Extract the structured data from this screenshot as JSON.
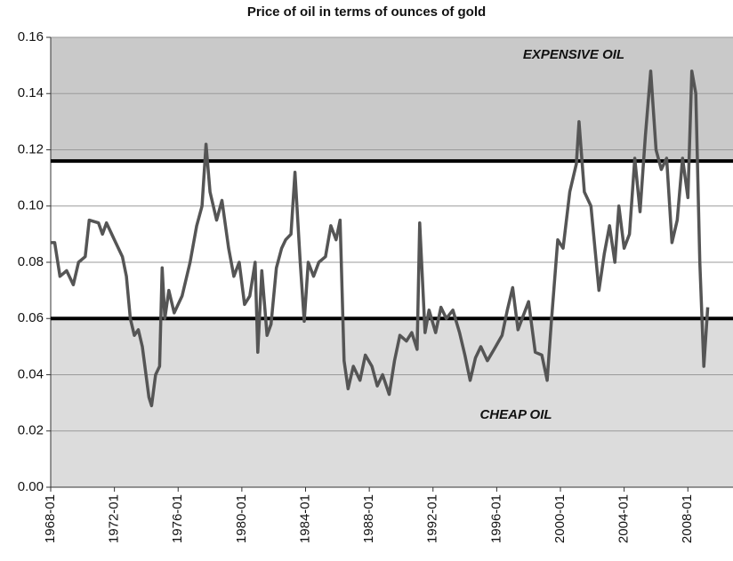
{
  "chart_data": {
    "type": "line",
    "title": "Price of oil in terms of ounces of gold",
    "annotations": [
      "EXPENSIVE OIL",
      "CHEAP OIL"
    ],
    "reference_lines": [
      0.116,
      0.06
    ],
    "band_colors": [
      "#c9c9c9",
      "#ffffff",
      "#dcdcdc"
    ],
    "color": "#555555",
    "grid": true,
    "ylim": [
      0,
      0.16
    ],
    "yticks": [
      {
        "value": 0,
        "label": "0.00"
      },
      0.02,
      0.04,
      0.06,
      0.08,
      {
        "value": 0.1,
        "label": "0.10"
      },
      0.12,
      0.14,
      0.16
    ],
    "xlim": [
      "1968-01",
      "2010-11"
    ],
    "xticks": [
      "1968-01",
      "1972-01",
      "1976-01",
      "1980-01",
      "1984-01",
      "1988-01",
      "1992-01",
      "1996-01",
      "2000-01",
      "2004-01",
      "2008-01"
    ],
    "x": [
      "1968-01",
      "1968-04",
      "1968-08",
      "1969-01",
      "1969-06",
      "1969-10",
      "1970-03",
      "1970-06",
      "1971-01",
      "1971-04",
      "1971-07",
      "1972-01",
      "1972-07",
      "1972-10",
      "1973-01",
      "1973-04",
      "1973-07",
      "1973-10",
      "1974-03",
      "1974-05",
      "1974-08",
      "1974-11",
      "1975-01",
      "1975-03",
      "1975-06",
      "1975-10",
      "1976-04",
      "1976-10",
      "1977-03",
      "1977-07",
      "1977-10",
      "1978-01",
      "1978-06",
      "1978-10",
      "1979-03",
      "1979-07",
      "1979-11",
      "1980-03",
      "1980-07",
      "1980-11",
      "1981-01",
      "1981-04",
      "1981-08",
      "1981-11",
      "1982-03",
      "1982-07",
      "1982-10",
      "1983-02",
      "1983-05",
      "1983-09",
      "1983-12",
      "1984-03",
      "1984-07",
      "1984-11",
      "1985-04",
      "1985-08",
      "1985-12",
      "1986-03",
      "1986-06",
      "1986-09",
      "1987-01",
      "1987-06",
      "1987-10",
      "1988-03",
      "1988-07",
      "1988-11",
      "1989-04",
      "1989-08",
      "1989-12",
      "1990-05",
      "1990-09",
      "1991-01",
      "1991-03",
      "1991-07",
      "1991-10",
      "1992-03",
      "1992-07",
      "1992-11",
      "1993-04",
      "1993-09",
      "1994-01",
      "1994-05",
      "1994-09",
      "1995-01",
      "1995-06",
      "1995-11",
      "1996-05",
      "1996-09",
      "1997-01",
      "1997-05",
      "1997-09",
      "1998-01",
      "1998-06",
      "1998-11",
      "1999-03",
      "1999-06",
      "1999-11",
      "2000-03",
      "2000-08",
      "2001-01",
      "2001-03",
      "2001-07",
      "2001-12",
      "2002-06",
      "2002-10",
      "2003-02",
      "2003-06",
      "2003-09",
      "2004-01",
      "2004-05",
      "2004-09",
      "2005-01",
      "2005-05",
      "2005-09",
      "2006-01",
      "2006-05",
      "2006-09",
      "2007-01",
      "2007-05",
      "2007-09",
      "2008-01",
      "2008-04",
      "2008-07",
      "2008-10",
      "2009-01",
      "2009-04"
    ],
    "values": [
      0.087,
      0.087,
      0.075,
      0.077,
      0.072,
      0.08,
      0.082,
      0.095,
      0.094,
      0.09,
      0.094,
      0.088,
      0.082,
      0.075,
      0.06,
      0.054,
      0.056,
      0.05,
      0.032,
      0.029,
      0.04,
      0.043,
      0.078,
      0.06,
      0.07,
      0.062,
      0.068,
      0.08,
      0.093,
      0.1,
      0.122,
      0.105,
      0.095,
      0.102,
      0.085,
      0.075,
      0.08,
      0.065,
      0.068,
      0.08,
      0.048,
      0.077,
      0.054,
      0.058,
      0.078,
      0.085,
      0.088,
      0.09,
      0.112,
      0.08,
      0.059,
      0.08,
      0.075,
      0.08,
      0.082,
      0.093,
      0.088,
      0.095,
      0.045,
      0.035,
      0.043,
      0.038,
      0.047,
      0.043,
      0.036,
      0.04,
      0.033,
      0.045,
      0.054,
      0.052,
      0.055,
      0.049,
      0.094,
      0.055,
      0.063,
      0.055,
      0.064,
      0.06,
      0.063,
      0.055,
      0.047,
      0.038,
      0.046,
      0.05,
      0.045,
      0.049,
      0.054,
      0.063,
      0.071,
      0.056,
      0.061,
      0.066,
      0.048,
      0.047,
      0.038,
      0.058,
      0.088,
      0.085,
      0.105,
      0.115,
      0.13,
      0.105,
      0.1,
      0.07,
      0.083,
      0.093,
      0.08,
      0.1,
      0.085,
      0.09,
      0.117,
      0.098,
      0.125,
      0.148,
      0.12,
      0.113,
      0.117,
      0.087,
      0.095,
      0.117,
      0.103,
      0.148,
      0.14,
      0.08,
      0.043,
      0.064
    ]
  }
}
